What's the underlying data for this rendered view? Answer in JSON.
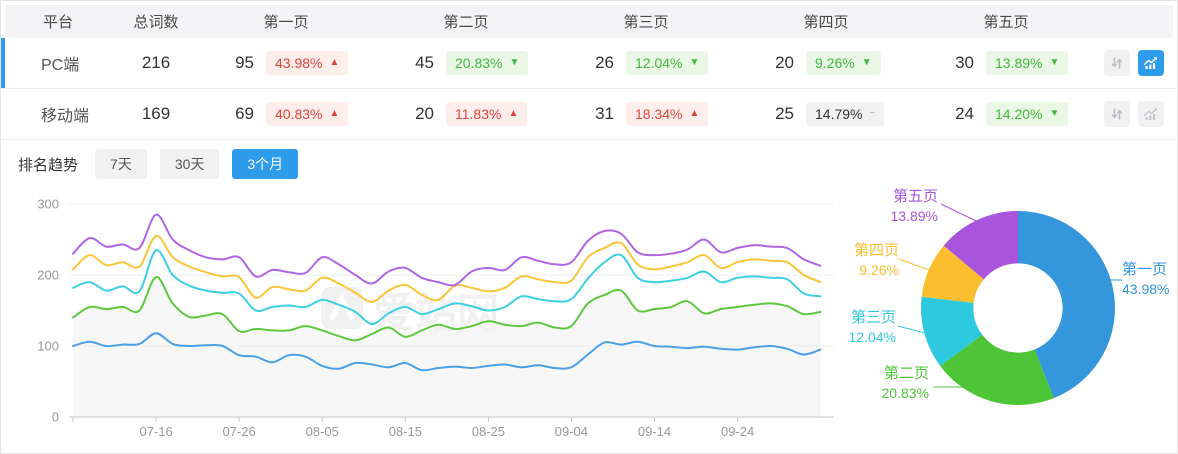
{
  "table": {
    "headers": [
      "平台",
      "总词数",
      "第一页",
      "第二页",
      "第三页",
      "第四页",
      "第五页"
    ],
    "rows": [
      {
        "platform": "PC端",
        "total": "216",
        "selected": true,
        "pages": [
          {
            "count": "95",
            "pct": "43.98%",
            "arrow": "▲",
            "tone": "red"
          },
          {
            "count": "45",
            "pct": "20.83%",
            "arrow": "▼",
            "tone": "green"
          },
          {
            "count": "26",
            "pct": "12.04%",
            "arrow": "▼",
            "tone": "green"
          },
          {
            "count": "20",
            "pct": "9.26%",
            "arrow": "▼",
            "tone": "green"
          },
          {
            "count": "30",
            "pct": "13.89%",
            "arrow": "▼",
            "tone": "green"
          }
        ],
        "trend_button_active": true
      },
      {
        "platform": "移动端",
        "total": "169",
        "selected": false,
        "pages": [
          {
            "count": "69",
            "pct": "40.83%",
            "arrow": "▲",
            "tone": "red"
          },
          {
            "count": "20",
            "pct": "11.83%",
            "arrow": "▲",
            "tone": "red"
          },
          {
            "count": "31",
            "pct": "18.34%",
            "arrow": "▲",
            "tone": "red"
          },
          {
            "count": "25",
            "pct": "14.79%",
            "arrow": "−",
            "tone": "gray"
          },
          {
            "count": "24",
            "pct": "14.20%",
            "arrow": "▼",
            "tone": "green"
          }
        ],
        "trend_button_active": false
      }
    ]
  },
  "trend": {
    "label": "排名趋势",
    "tabs": [
      {
        "label": "7天",
        "active": false
      },
      {
        "label": "30天",
        "active": false
      },
      {
        "label": "3个月",
        "active": true
      }
    ]
  },
  "watermark": "爱站网",
  "colors": {
    "accent_blue": "#2d9ceb",
    "badge_red_text": "#e0443c",
    "badge_red_bg": "#fdeeec",
    "badge_green_text": "#43b83e",
    "badge_green_bg": "#eaf6e6",
    "badge_gray_bg": "#f2f2f3",
    "header_bg": "#f3f3f5",
    "axis_text": "#999999"
  },
  "chart_data": [
    {
      "type": "line",
      "title": "排名趋势 3个月",
      "x_start": "07-06",
      "x_step_days": 2,
      "x_ticks": [
        "07-16",
        "07-26",
        "08-05",
        "08-15",
        "08-25",
        "09-04",
        "09-14",
        "09-24"
      ],
      "ylim": [
        0,
        300
      ],
      "y_ticks": [
        0,
        100,
        200,
        300
      ],
      "grid": "horizontal",
      "legend_position": "none",
      "series": [
        {
          "name": "blue",
          "color": "#4ba0e8",
          "values": [
            100,
            106,
            100,
            102,
            103,
            118,
            103,
            100,
            101,
            100,
            87,
            85,
            77,
            87,
            85,
            72,
            68,
            76,
            74,
            70,
            76,
            66,
            69,
            71,
            69,
            72,
            74,
            70,
            73,
            69,
            70,
            88,
            105,
            102,
            106,
            100,
            99,
            97,
            99,
            96,
            95,
            98,
            100,
            96,
            88,
            95
          ]
        },
        {
          "name": "green",
          "color": "#5dc93f",
          "area_fill": "#f7f7f7",
          "values": [
            140,
            155,
            152,
            155,
            150,
            197,
            160,
            141,
            143,
            145,
            121,
            124,
            122,
            122,
            128,
            122,
            114,
            108,
            117,
            126,
            113,
            122,
            130,
            124,
            128,
            135,
            130,
            128,
            133,
            126,
            128,
            160,
            172,
            178,
            150,
            152,
            155,
            163,
            146,
            152,
            155,
            158,
            160,
            156,
            145,
            148
          ]
        },
        {
          "name": "cyan",
          "color": "#3ed0e2",
          "values": [
            182,
            190,
            178,
            184,
            177,
            235,
            200,
            185,
            178,
            175,
            174,
            150,
            155,
            157,
            155,
            165,
            158,
            148,
            131,
            146,
            155,
            145,
            152,
            160,
            156,
            150,
            155,
            170,
            166,
            163,
            166,
            195,
            218,
            228,
            196,
            190,
            192,
            196,
            205,
            190,
            196,
            198,
            196,
            194,
            174,
            170
          ]
        },
        {
          "name": "yellow",
          "color": "#fbc53a",
          "values": [
            208,
            228,
            214,
            218,
            212,
            255,
            225,
            212,
            204,
            198,
            197,
            168,
            183,
            180,
            178,
            196,
            188,
            175,
            162,
            178,
            186,
            172,
            165,
            185,
            182,
            177,
            182,
            198,
            194,
            190,
            192,
            225,
            238,
            245,
            215,
            208,
            212,
            218,
            228,
            210,
            218,
            222,
            220,
            218,
            200,
            190
          ]
        },
        {
          "name": "purple",
          "color": "#b065e6",
          "values": [
            230,
            252,
            240,
            243,
            238,
            285,
            250,
            235,
            225,
            222,
            225,
            198,
            207,
            204,
            203,
            225,
            215,
            200,
            188,
            205,
            210,
            196,
            190,
            186,
            205,
            210,
            207,
            225,
            220,
            215,
            218,
            248,
            262,
            258,
            232,
            228,
            230,
            236,
            250,
            232,
            238,
            242,
            240,
            238,
            222,
            213
          ]
        }
      ]
    },
    {
      "type": "pie",
      "donut": true,
      "inner_radius_ratio": 0.46,
      "legend_position": "outside-labels",
      "slices": [
        {
          "label": "第一页",
          "value": 43.98,
          "display": "43.98%",
          "color": "#3496db"
        },
        {
          "label": "第二页",
          "value": 20.83,
          "display": "20.83%",
          "color": "#4ec437"
        },
        {
          "label": "第三页",
          "value": 12.04,
          "display": "12.04%",
          "color": "#2fc9df"
        },
        {
          "label": "第四页",
          "value": 9.26,
          "display": "9.26%",
          "color": "#fbbe2e"
        },
        {
          "label": "第五页",
          "value": 13.89,
          "display": "13.89%",
          "color": "#a855db"
        }
      ]
    }
  ]
}
